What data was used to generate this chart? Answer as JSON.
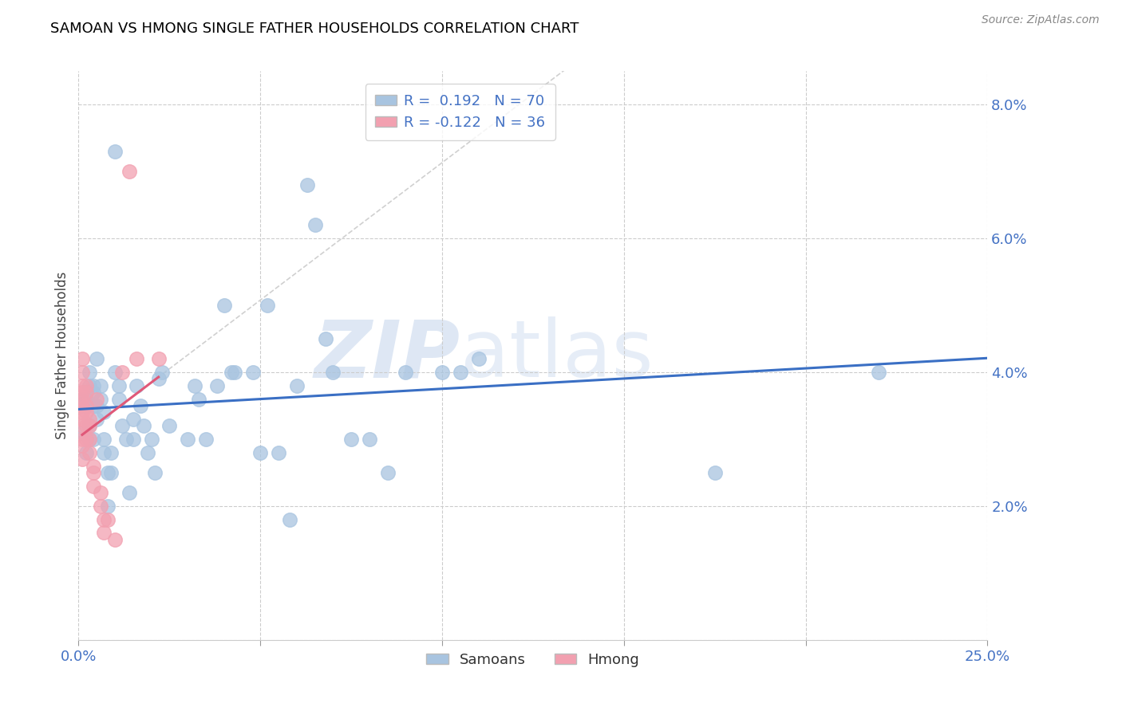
{
  "title": "SAMOAN VS HMONG SINGLE FATHER HOUSEHOLDS CORRELATION CHART",
  "source": "Source: ZipAtlas.com",
  "ylabel": "Single Father Households",
  "xlim": [
    0.0,
    0.25
  ],
  "ylim": [
    0.0,
    0.085
  ],
  "samoan_color": "#a8c4e0",
  "hmong_color": "#f2a0b0",
  "samoan_R": 0.192,
  "samoan_N": 70,
  "hmong_R": -0.122,
  "hmong_N": 36,
  "samoan_line_color": "#3a6fc4",
  "hmong_line_color": "#e05878",
  "hmong_dash_line_color": "#d0d0d0",
  "watermark_zip": "ZIP",
  "watermark_atlas": "atlas",
  "samoan_x": [
    0.001,
    0.001,
    0.002,
    0.002,
    0.002,
    0.003,
    0.003,
    0.003,
    0.003,
    0.004,
    0.004,
    0.004,
    0.004,
    0.005,
    0.005,
    0.005,
    0.006,
    0.006,
    0.007,
    0.007,
    0.007,
    0.008,
    0.008,
    0.009,
    0.009,
    0.01,
    0.01,
    0.011,
    0.011,
    0.012,
    0.013,
    0.014,
    0.015,
    0.015,
    0.016,
    0.017,
    0.018,
    0.019,
    0.02,
    0.021,
    0.022,
    0.023,
    0.025,
    0.03,
    0.032,
    0.033,
    0.035,
    0.038,
    0.04,
    0.042,
    0.043,
    0.048,
    0.05,
    0.052,
    0.055,
    0.058,
    0.06,
    0.063,
    0.065,
    0.068,
    0.07,
    0.075,
    0.08,
    0.085,
    0.09,
    0.1,
    0.105,
    0.11,
    0.175,
    0.22
  ],
  "samoan_y": [
    0.031,
    0.036,
    0.035,
    0.036,
    0.028,
    0.032,
    0.03,
    0.038,
    0.04,
    0.037,
    0.03,
    0.038,
    0.035,
    0.042,
    0.035,
    0.033,
    0.038,
    0.036,
    0.028,
    0.034,
    0.03,
    0.025,
    0.02,
    0.028,
    0.025,
    0.073,
    0.04,
    0.038,
    0.036,
    0.032,
    0.03,
    0.022,
    0.03,
    0.033,
    0.038,
    0.035,
    0.032,
    0.028,
    0.03,
    0.025,
    0.039,
    0.04,
    0.032,
    0.03,
    0.038,
    0.036,
    0.03,
    0.038,
    0.05,
    0.04,
    0.04,
    0.04,
    0.028,
    0.05,
    0.028,
    0.018,
    0.038,
    0.068,
    0.062,
    0.045,
    0.04,
    0.03,
    0.03,
    0.025,
    0.04,
    0.04,
    0.04,
    0.042,
    0.025,
    0.04
  ],
  "hmong_x": [
    0.001,
    0.001,
    0.001,
    0.001,
    0.001,
    0.001,
    0.001,
    0.001,
    0.001,
    0.001,
    0.001,
    0.001,
    0.002,
    0.002,
    0.002,
    0.002,
    0.002,
    0.002,
    0.003,
    0.003,
    0.003,
    0.003,
    0.004,
    0.004,
    0.004,
    0.005,
    0.006,
    0.006,
    0.007,
    0.007,
    0.008,
    0.01,
    0.012,
    0.014,
    0.016,
    0.022
  ],
  "hmong_y": [
    0.042,
    0.04,
    0.038,
    0.037,
    0.036,
    0.035,
    0.034,
    0.033,
    0.032,
    0.03,
    0.029,
    0.027,
    0.038,
    0.037,
    0.035,
    0.034,
    0.032,
    0.03,
    0.033,
    0.032,
    0.03,
    0.028,
    0.026,
    0.025,
    0.023,
    0.036,
    0.022,
    0.02,
    0.018,
    0.016,
    0.018,
    0.015,
    0.04,
    0.07,
    0.042,
    0.042
  ]
}
